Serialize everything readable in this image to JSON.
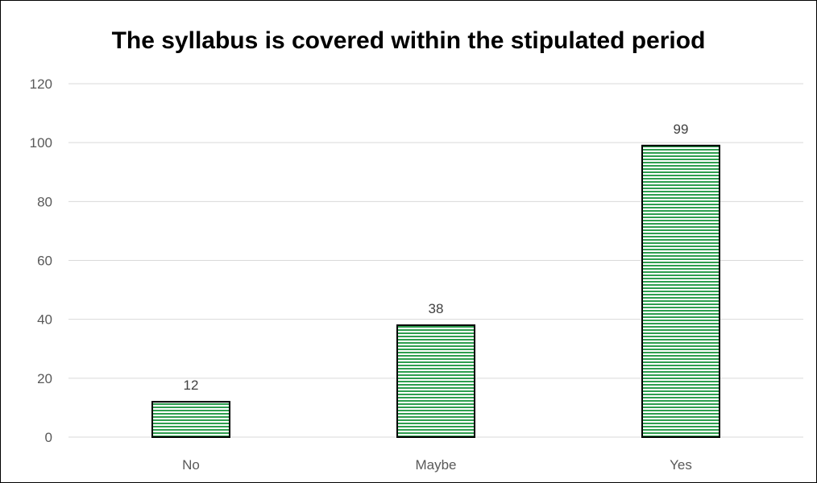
{
  "chart_data": {
    "type": "bar",
    "title": "The syllabus is covered within the stipulated period",
    "categories": [
      "No",
      "Maybe",
      "Yes"
    ],
    "values": [
      12,
      38,
      99
    ],
    "data_labels": [
      "12",
      "38",
      "99"
    ],
    "ylim": [
      0,
      120
    ],
    "yticks": [
      0,
      20,
      40,
      60,
      80,
      100,
      120
    ],
    "ytick_labels": [
      "0",
      "20",
      "40",
      "60",
      "80",
      "100",
      "120"
    ],
    "grid": true,
    "legend": "none",
    "xlabel": "",
    "ylabel": "",
    "colors": {
      "bar_fill": "#ffffff",
      "bar_stripe": "#2e9e4f",
      "bar_outline": "#000000",
      "gridline": "#d9d9d9",
      "axis_text": "#595959",
      "label_text": "#404040"
    }
  }
}
